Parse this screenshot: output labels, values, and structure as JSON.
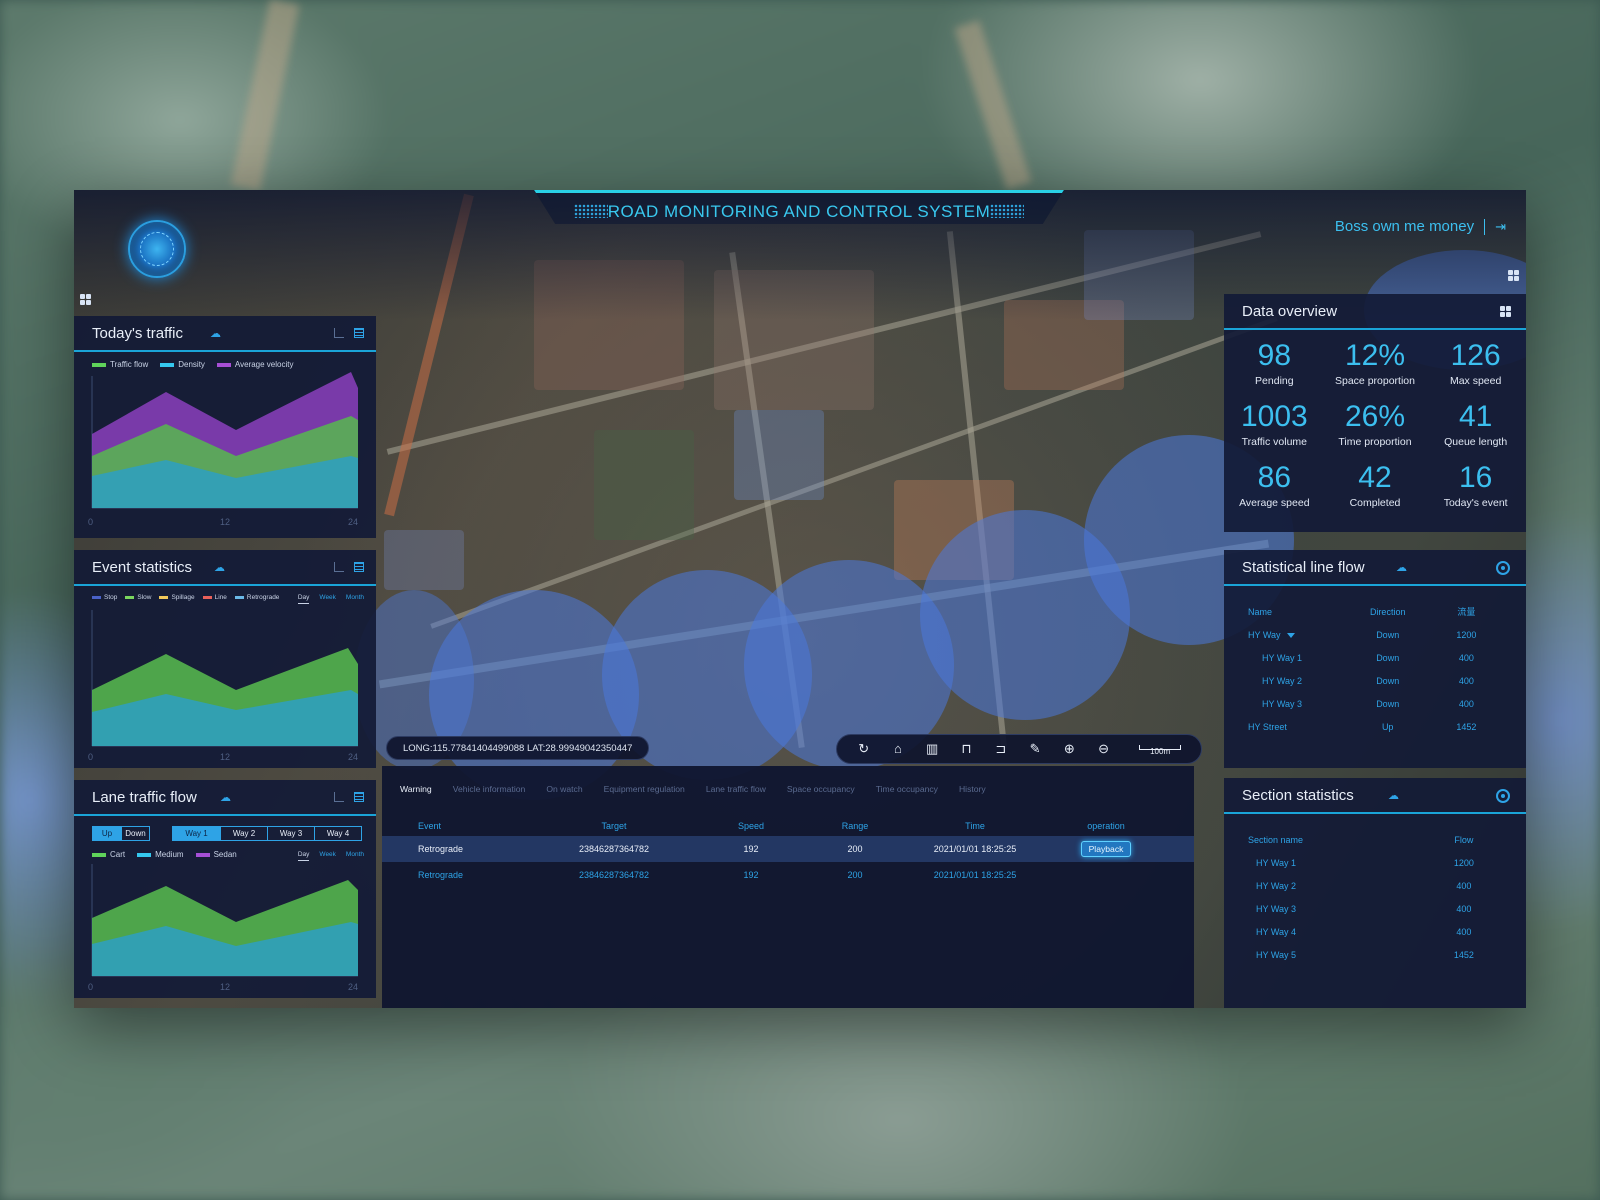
{
  "header": {
    "title": "ROAD MONITORING AND CONTROL SYSTEM",
    "user_name": "Boss own me money"
  },
  "todays_traffic": {
    "title": "Today's traffic",
    "legend": [
      "Traffic flow",
      "Density",
      "Average velocity"
    ],
    "x_ticks": [
      "0",
      "12",
      "24"
    ]
  },
  "event_statistics": {
    "title": "Event statistics",
    "legend": [
      "Stop",
      "Slow",
      "Spillage",
      "Line",
      "Retrograde"
    ],
    "periods": [
      "Day",
      "Week",
      "Month"
    ],
    "x_ticks": [
      "0",
      "12",
      "24"
    ]
  },
  "lane_traffic_flow": {
    "title": "Lane traffic flow",
    "directions": [
      "Up",
      "Down"
    ],
    "ways": [
      "Way 1",
      "Way 2",
      "Way 3",
      "Way 4"
    ],
    "legend": [
      "Cart",
      "Medium",
      "Sedan"
    ],
    "periods": [
      "Day",
      "Week",
      "Month"
    ],
    "x_ticks": [
      "0",
      "12",
      "24"
    ]
  },
  "data_overview": {
    "title": "Data overview",
    "stats": [
      {
        "value": "98",
        "label": "Pending"
      },
      {
        "value": "12%",
        "label": "Space proportion"
      },
      {
        "value": "126",
        "label": "Max speed"
      },
      {
        "value": "1003",
        "label": "Traffic volume"
      },
      {
        "value": "26%",
        "label": "Time proportion"
      },
      {
        "value": "41",
        "label": "Queue length"
      },
      {
        "value": "86",
        "label": "Average speed"
      },
      {
        "value": "42",
        "label": "Completed"
      },
      {
        "value": "16",
        "label": "Today's event"
      }
    ]
  },
  "statistical_line_flow": {
    "title": "Statistical line flow",
    "headers": [
      "Name",
      "Direction",
      "流量"
    ],
    "rows": [
      {
        "name": "HY Way",
        "direction": "Down",
        "flow": "1200"
      },
      {
        "name": "HY Way 1",
        "direction": "Down",
        "flow": "400"
      },
      {
        "name": "HY Way 2",
        "direction": "Down",
        "flow": "400"
      },
      {
        "name": "HY Way 3",
        "direction": "Down",
        "flow": "400"
      },
      {
        "name": "HY Street",
        "direction": "Up",
        "flow": "1452"
      }
    ]
  },
  "section_statistics": {
    "title": "Section statistics",
    "headers": [
      "Section name",
      "Flow"
    ],
    "rows": [
      {
        "name": "HY Way 1",
        "flow": "1200"
      },
      {
        "name": "HY Way 2",
        "flow": "400"
      },
      {
        "name": "HY Way 3",
        "flow": "400"
      },
      {
        "name": "HY Way 4",
        "flow": "400"
      },
      {
        "name": "HY Way 5",
        "flow": "1452"
      }
    ]
  },
  "map": {
    "coordinates": "LONG:115.77841404499088  LAT:28.99949042350447",
    "scale_label": "100m"
  },
  "events": {
    "tabs": [
      "Warning",
      "Vehicle information",
      "On watch",
      "Equipment regulation",
      "Lane traffic flow",
      "Space occupancy",
      "Time occupancy",
      "History"
    ],
    "headers": [
      "Event",
      "Target",
      "Speed",
      "Range",
      "Time",
      "operation"
    ],
    "rows": [
      {
        "event": "Retrograde",
        "target": "23846287364782",
        "speed": "192",
        "range": "200",
        "time": "2021/01/01 18:25:25",
        "operation": "Playback"
      },
      {
        "event": "Retrograde",
        "target": "23846287364782",
        "speed": "192",
        "range": "200",
        "time": "2021/01/01 18:25:25",
        "operation": ""
      }
    ]
  },
  "colors": {
    "accent": "#2ea3e6",
    "green": "#5fd35a",
    "cyan": "#35c8ef",
    "purple": "#a64fd6"
  }
}
